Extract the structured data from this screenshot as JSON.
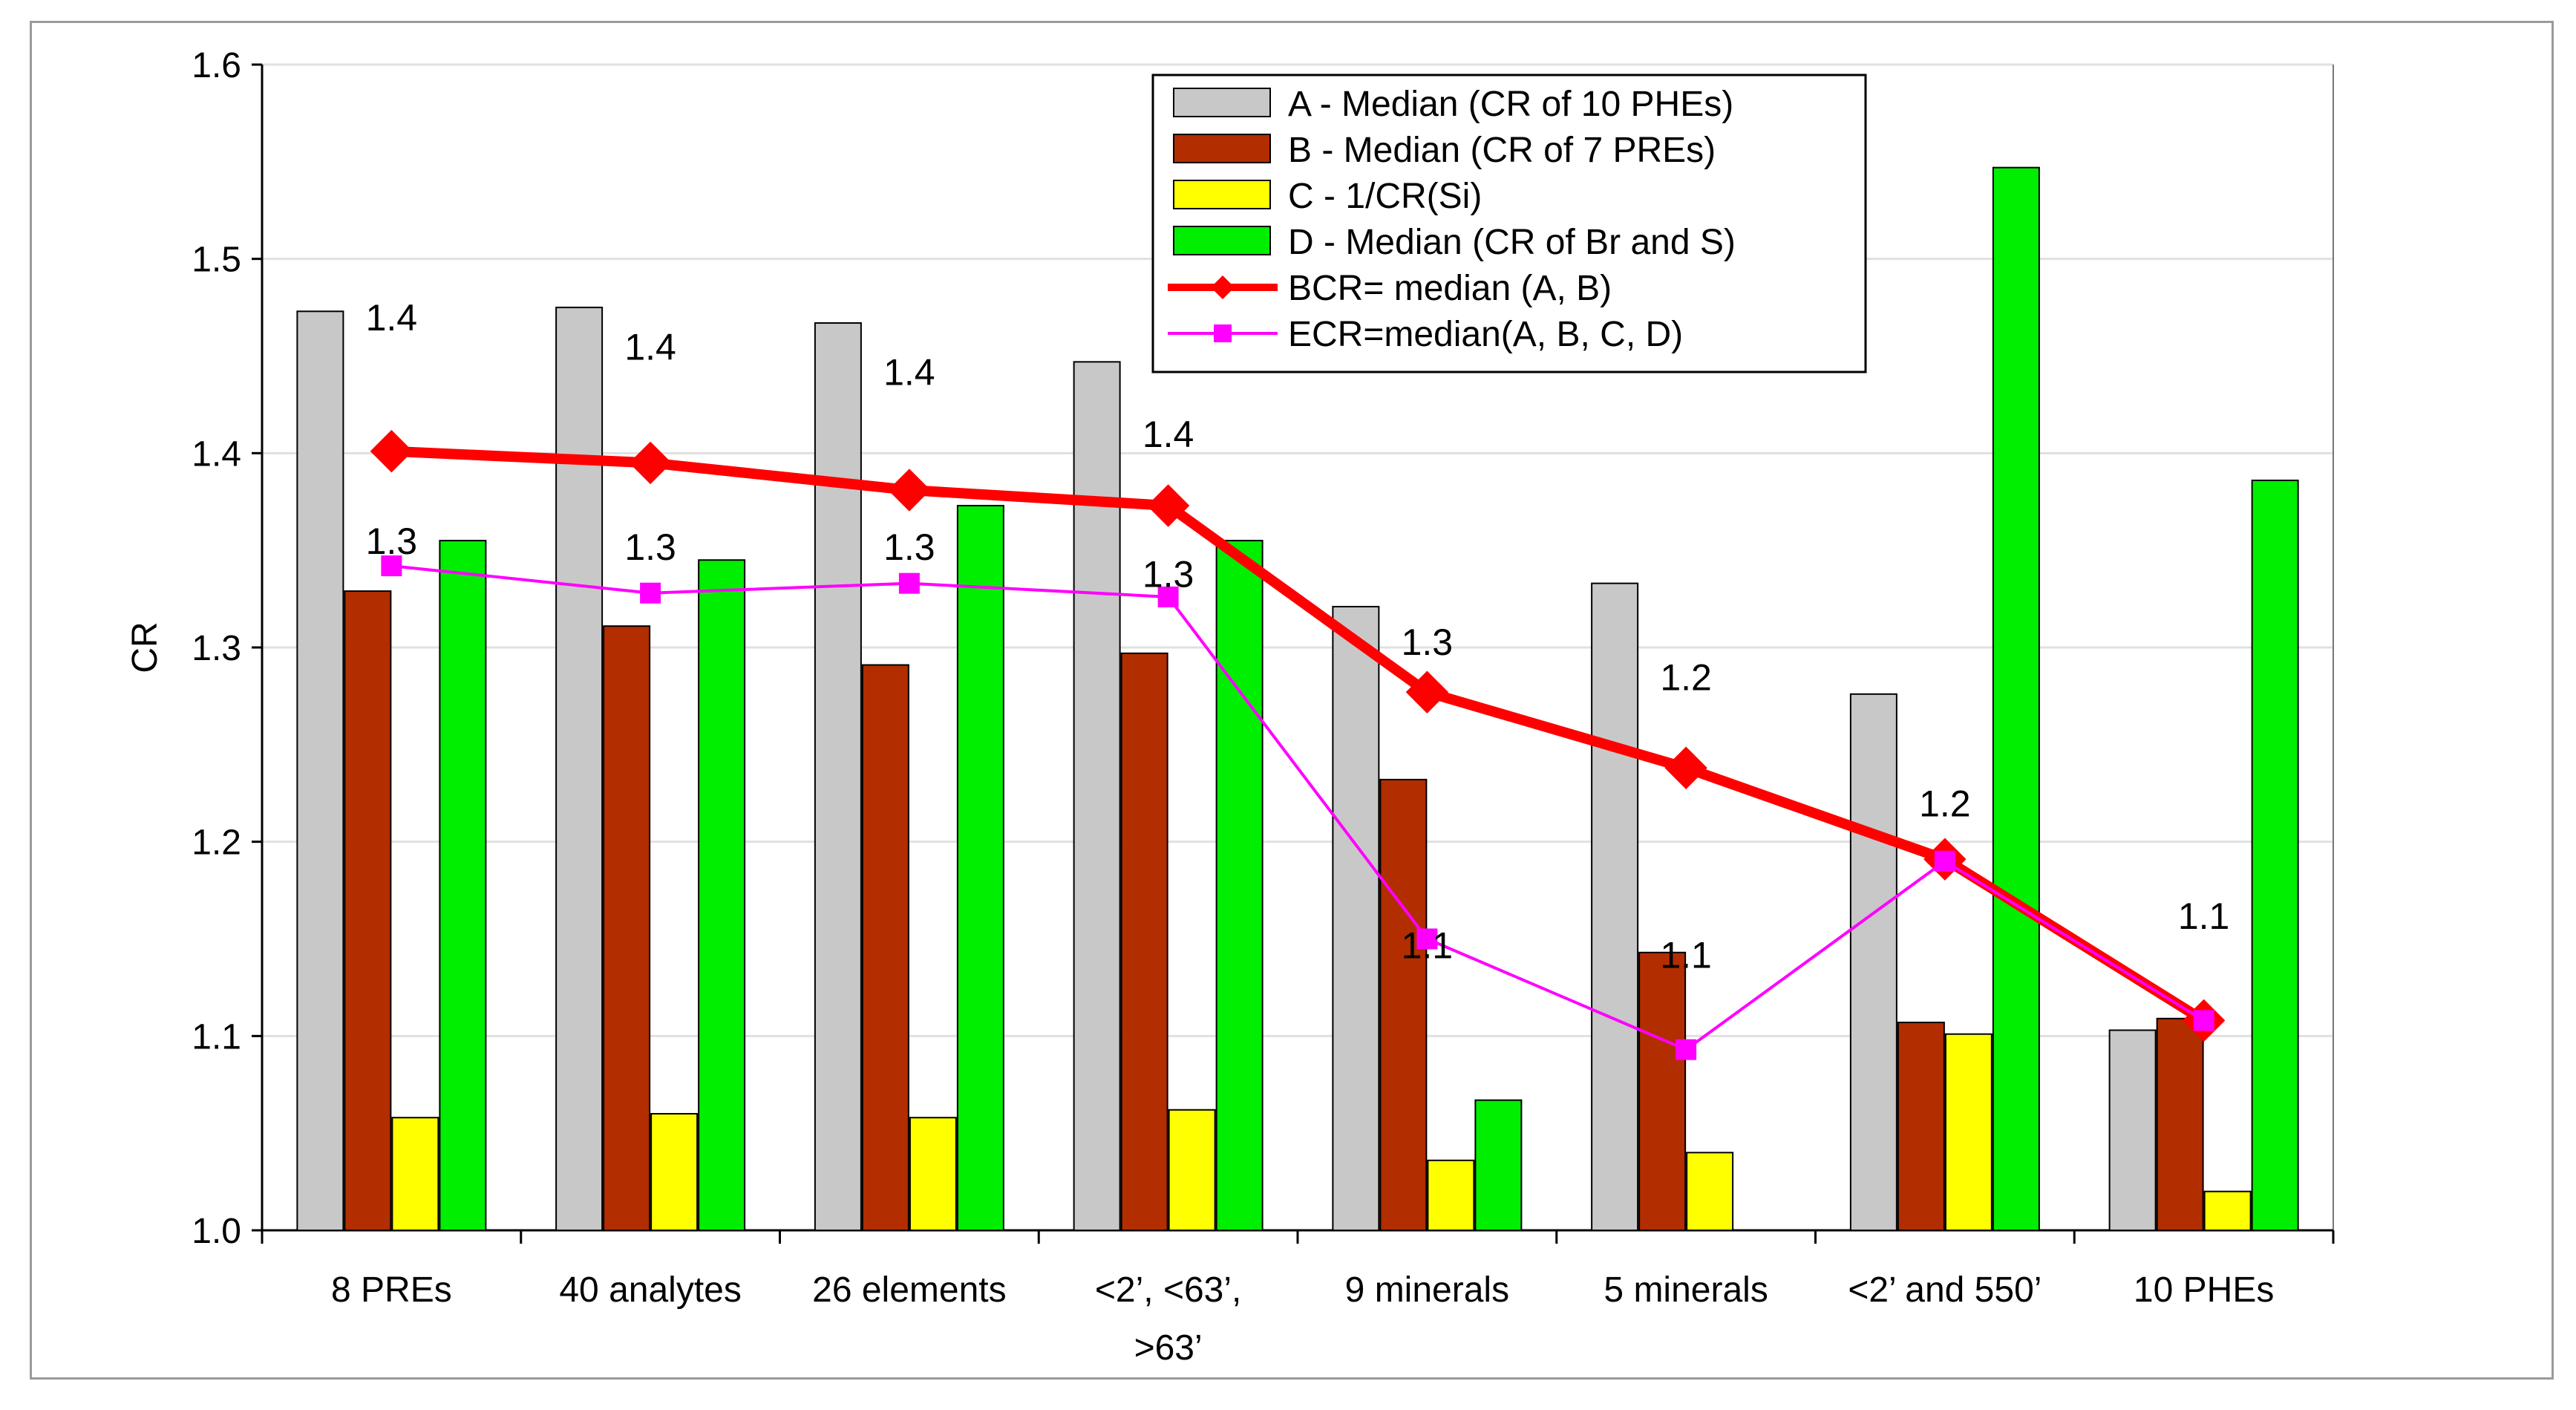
{
  "chart_data": {
    "type": "bar",
    "title": "",
    "xlabel": "",
    "ylabel": "CR",
    "ylim": [
      1.0,
      1.6
    ],
    "yticks": [
      "1.0",
      "1.1",
      "1.2",
      "1.3",
      "1.4",
      "1.5",
      "1.6"
    ],
    "grid": true,
    "legend_position": "top-center",
    "categories": [
      [
        "8 PREs"
      ],
      [
        "40 analytes"
      ],
      [
        "26 elements"
      ],
      [
        "<2’, <63’,",
        ">63’"
      ],
      [
        "9 minerals"
      ],
      [
        "5 minerals"
      ],
      [
        "<2’ and 550’"
      ],
      [
        "10 PHEs"
      ]
    ],
    "series": [
      {
        "name": "A - Median (CR of 10 PHEs)",
        "kind": "bar",
        "color": "#c8c8c8",
        "values": [
          1.473,
          1.475,
          1.467,
          1.447,
          1.321,
          1.333,
          1.276,
          1.103
        ]
      },
      {
        "name": "B - Median (CR of 7 PREs)",
        "kind": "bar",
        "color": "#b22d00",
        "values": [
          1.329,
          1.311,
          1.291,
          1.297,
          1.232,
          1.143,
          1.107,
          1.109
        ]
      },
      {
        "name": "C - 1/CR(Si)",
        "kind": "bar",
        "color": "#ffff00",
        "values": [
          1.058,
          1.06,
          1.058,
          1.062,
          1.036,
          1.04,
          1.101,
          1.02
        ]
      },
      {
        "name": "D - Median (CR of Br and S)",
        "kind": "bar",
        "color": "#00ee00",
        "values": [
          1.355,
          1.345,
          1.373,
          1.355,
          1.067,
          null,
          1.547,
          1.386
        ]
      },
      {
        "name": "BCR= median (A, B)",
        "kind": "line",
        "color": "#ff0000",
        "marker": "diamond",
        "values": [
          1.401,
          1.395,
          1.381,
          1.373,
          1.277,
          1.238,
          1.191,
          1.108
        ]
      },
      {
        "name": "ECR=median(A, B, C, D)",
        "kind": "line",
        "color": "#ff00ff",
        "marker": "square",
        "values": [
          1.342,
          1.328,
          1.333,
          1.326,
          1.15,
          1.093,
          1.19,
          1.108
        ]
      }
    ],
    "annotations": [
      {
        "text": "1.4",
        "x": 0,
        "y": 1.47
      },
      {
        "text": "1.4",
        "x": 1,
        "y": 1.455
      },
      {
        "text": "1.4",
        "x": 2,
        "y": 1.442
      },
      {
        "text": "1.4",
        "x": 3,
        "y": 1.41
      },
      {
        "text": "1.3",
        "x": 0,
        "y": 1.355
      },
      {
        "text": "1.3",
        "x": 1,
        "y": 1.352
      },
      {
        "text": "1.3",
        "x": 2,
        "y": 1.352
      },
      {
        "text": "1.3",
        "x": 3,
        "y": 1.338
      },
      {
        "text": "1.3",
        "x": 4,
        "y": 1.303
      },
      {
        "text": "1.2",
        "x": 5,
        "y": 1.285
      },
      {
        "text": "1.2",
        "x": 6,
        "y": 1.22
      },
      {
        "text": "1.1",
        "x": 4,
        "y": 1.147
      },
      {
        "text": "1.1",
        "x": 5,
        "y": 1.142
      },
      {
        "text": "1.1",
        "x": 7,
        "y": 1.162
      }
    ]
  }
}
